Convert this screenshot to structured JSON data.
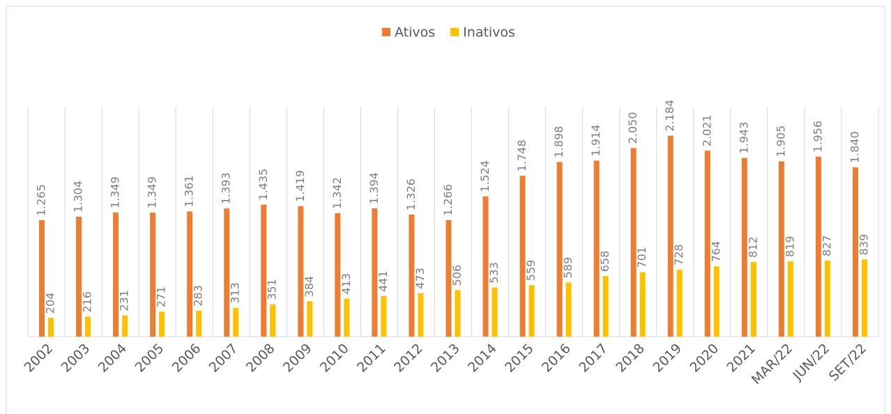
{
  "chart_data": {
    "type": "bar",
    "categories": [
      "2002",
      "2003",
      "2004",
      "2005",
      "2006",
      "2007",
      "2008",
      "2009",
      "2010",
      "2011",
      "2012",
      "2013",
      "2014",
      "2015",
      "2016",
      "2017",
      "2018",
      "2019",
      "2020",
      "2021",
      "MAR/22",
      "JUN/22",
      "SET/22"
    ],
    "series": [
      {
        "name": "Ativos",
        "color": "#ed7d31",
        "values": [
          1265,
          1304,
          1349,
          1349,
          1361,
          1393,
          1435,
          1419,
          1342,
          1394,
          1326,
          1266,
          1524,
          1748,
          1898,
          1914,
          2050,
          2184,
          2021,
          1943,
          1905,
          1956,
          1840
        ],
        "value_labels": [
          "1.265",
          "1.304",
          "1.349",
          "1.349",
          "1.361",
          "1.393",
          "1.435",
          "1.419",
          "1.342",
          "1.394",
          "1.326",
          "1.266",
          "1.524",
          "1.748",
          "1.898",
          "1.914",
          "2.050",
          "2.184",
          "2.021",
          "1.943",
          "1.905",
          "1.956",
          "1.840"
        ]
      },
      {
        "name": "Inativos",
        "color": "#ffc000",
        "values": [
          204,
          216,
          231,
          271,
          283,
          313,
          351,
          384,
          413,
          441,
          473,
          506,
          533,
          559,
          589,
          658,
          701,
          728,
          764,
          812,
          819,
          827,
          839
        ]
      }
    ],
    "ylim": [
      0,
      2500
    ],
    "legend": "top"
  }
}
